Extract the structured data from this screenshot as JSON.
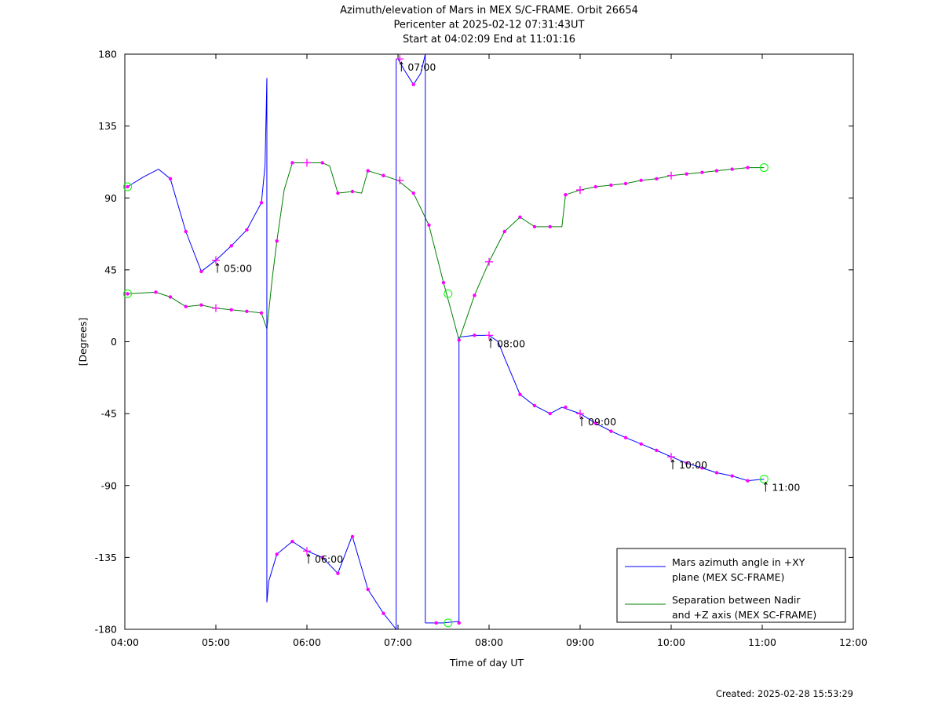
{
  "chart_data": {
    "type": "line",
    "title": [
      "Azimuth/elevation of Mars in MEX S/C-FRAME.  Orbit 26654",
      "Pericenter at 2025-02-12 07:31:43UT",
      "Start at 04:02:09 End at 11:01:16"
    ],
    "xlabel": "Time of day UT",
    "ylabel": "[Degrees]",
    "xlim": [
      4,
      12
    ],
    "ylim": [
      -180,
      180
    ],
    "x_ticks": [
      4,
      5,
      6,
      7,
      8,
      9,
      10,
      11,
      12
    ],
    "x_tick_labels": [
      "04:00",
      "05:00",
      "06:00",
      "07:00",
      "08:00",
      "09:00",
      "10:00",
      "11:00",
      "12:00"
    ],
    "y_ticks": [
      -180,
      -135,
      -90,
      -45,
      0,
      45,
      90,
      135,
      180
    ],
    "y_tick_labels": [
      "-180",
      "-135",
      "-90",
      "-45",
      "0",
      "45",
      "90",
      "135",
      "180"
    ],
    "grid": false,
    "legend_position": "bottom-right",
    "colors": {
      "azimuth": "#0000ff",
      "separation": "#008000",
      "marker": "#ff00ff",
      "endpoint": "#00ff00"
    },
    "series": [
      {
        "name": "Mars azimuth angle in +XY plane (MEX SC-FRAME)",
        "legend_lines": [
          "Mars azimuth angle in +XY",
          "plane (MEX SC-FRAME)"
        ],
        "color": "#0000ff",
        "segments": [
          [
            [
              4.03,
              97
            ],
            [
              4.2,
              103
            ],
            [
              4.37,
              108
            ],
            [
              4.5,
              102
            ],
            [
              4.67,
              69
            ],
            [
              4.84,
              44
            ],
            [
              5.0,
              51
            ],
            [
              5.17,
              60
            ],
            [
              5.34,
              70
            ],
            [
              5.5,
              87
            ],
            [
              5.54,
              110
            ],
            [
              5.56,
              165
            ]
          ],
          [
            [
              5.56,
              -163
            ],
            [
              5.58,
              -150
            ],
            [
              5.67,
              -133
            ],
            [
              5.84,
              -125
            ],
            [
              6.0,
              -131
            ],
            [
              6.17,
              -135
            ],
            [
              6.34,
              -145
            ],
            [
              6.5,
              -121
            ],
            [
              6.5,
              -122
            ],
            [
              6.67,
              -155
            ],
            [
              6.84,
              -170
            ],
            [
              6.98,
              -180
            ]
          ],
          [
            [
              7.0,
              177
            ],
            [
              7.07,
              170
            ],
            [
              7.17,
              161
            ],
            [
              7.25,
              168
            ],
            [
              7.3,
              180
            ]
          ],
          [
            [
              7.3,
              -176
            ],
            [
              7.5,
              -176
            ],
            [
              7.67,
              -175
            ]
          ],
          [
            [
              7.69,
              3
            ],
            [
              7.84,
              4
            ],
            [
              8.0,
              4
            ],
            [
              8.1,
              0
            ],
            [
              8.17,
              -10
            ],
            [
              8.34,
              -33
            ],
            [
              8.5,
              -40
            ],
            [
              8.67,
              -45
            ],
            [
              8.8,
              -41
            ],
            [
              9.0,
              -45
            ],
            [
              9.17,
              -51
            ],
            [
              9.34,
              -56
            ],
            [
              9.5,
              -60
            ],
            [
              9.67,
              -64
            ],
            [
              9.84,
              -68
            ],
            [
              10.0,
              -72
            ],
            [
              10.17,
              -76
            ],
            [
              10.34,
              -79
            ],
            [
              10.5,
              -82
            ],
            [
              10.67,
              -84
            ],
            [
              10.84,
              -87
            ],
            [
              11.02,
              -86
            ]
          ]
        ]
      },
      {
        "name": "Separation between Nadir and +Z axis (MEX SC-FRAME)",
        "legend_lines": [
          "Separation between Nadir",
          "and +Z axis (MEX SC-FRAME)"
        ],
        "color": "#008000",
        "segments": [
          [
            [
              4.03,
              30
            ],
            [
              4.34,
              31
            ],
            [
              4.5,
              28
            ],
            [
              4.67,
              22
            ],
            [
              4.84,
              23
            ],
            [
              5.0,
              21
            ],
            [
              5.17,
              20
            ],
            [
              5.34,
              19
            ],
            [
              5.5,
              18
            ],
            [
              5.56,
              8
            ],
            [
              5.62,
              40
            ],
            [
              5.67,
              63
            ],
            [
              5.75,
              95
            ],
            [
              5.84,
              112
            ],
            [
              6.0,
              112
            ],
            [
              6.17,
              112
            ],
            [
              6.25,
              110
            ],
            [
              6.34,
              93
            ],
            [
              6.5,
              94
            ],
            [
              6.6,
              93
            ],
            [
              6.67,
              107
            ],
            [
              6.84,
              104
            ],
            [
              7.0,
              101
            ],
            [
              7.17,
              93
            ],
            [
              7.34,
              73
            ],
            [
              7.5,
              37
            ],
            [
              7.6,
              16
            ],
            [
              7.67,
              1
            ],
            [
              7.84,
              29
            ],
            [
              8.0,
              50
            ],
            [
              8.17,
              69
            ],
            [
              8.34,
              78
            ],
            [
              8.5,
              72
            ],
            [
              8.67,
              72
            ],
            [
              8.8,
              72
            ],
            [
              8.84,
              92
            ],
            [
              9.0,
              95
            ],
            [
              9.17,
              97
            ],
            [
              9.34,
              98
            ],
            [
              9.5,
              99
            ],
            [
              9.67,
              101
            ],
            [
              9.84,
              102
            ],
            [
              10.0,
              104
            ],
            [
              10.17,
              105
            ],
            [
              10.34,
              106
            ],
            [
              10.5,
              107
            ],
            [
              10.67,
              108
            ],
            [
              10.84,
              109
            ],
            [
              11.02,
              109
            ]
          ]
        ]
      }
    ],
    "markers": {
      "azimuth": [
        [
          4.03,
          97
        ],
        [
          4.5,
          102
        ],
        [
          4.67,
          69
        ],
        [
          4.84,
          44
        ],
        [
          5.17,
          60
        ],
        [
          5.34,
          70
        ],
        [
          5.5,
          87
        ],
        [
          5.67,
          -133
        ],
        [
          5.84,
          -125
        ],
        [
          6.17,
          -135
        ],
        [
          6.34,
          -145
        ],
        [
          6.5,
          -122
        ],
        [
          6.67,
          -155
        ],
        [
          6.84,
          -170
        ],
        [
          7.17,
          161
        ],
        [
          7.84,
          4
        ],
        [
          8.34,
          -33
        ],
        [
          8.5,
          -40
        ],
        [
          8.67,
          -45
        ],
        [
          8.84,
          -41
        ],
        [
          9.17,
          -51
        ],
        [
          9.34,
          -56
        ],
        [
          9.5,
          -60
        ],
        [
          9.67,
          -64
        ],
        [
          9.84,
          -68
        ],
        [
          10.17,
          -76
        ],
        [
          10.34,
          -79
        ],
        [
          10.5,
          -82
        ],
        [
          10.67,
          -84
        ],
        [
          10.84,
          -87
        ],
        [
          7.42,
          -176
        ],
        [
          7.67,
          -176
        ]
      ],
      "separation": [
        [
          4.03,
          30
        ],
        [
          4.34,
          31
        ],
        [
          4.5,
          28
        ],
        [
          4.67,
          22
        ],
        [
          4.84,
          23
        ],
        [
          5.17,
          20
        ],
        [
          5.34,
          19
        ],
        [
          5.5,
          18
        ],
        [
          5.67,
          63
        ],
        [
          5.84,
          112
        ],
        [
          6.17,
          112
        ],
        [
          6.34,
          93
        ],
        [
          6.5,
          94
        ],
        [
          6.67,
          107
        ],
        [
          6.84,
          104
        ],
        [
          7.17,
          93
        ],
        [
          7.34,
          73
        ],
        [
          7.5,
          37
        ],
        [
          7.67,
          1
        ],
        [
          7.84,
          29
        ],
        [
          8.17,
          69
        ],
        [
          8.34,
          78
        ],
        [
          8.5,
          72
        ],
        [
          8.67,
          72
        ],
        [
          8.84,
          92
        ],
        [
          9.17,
          97
        ],
        [
          9.34,
          98
        ],
        [
          9.5,
          99
        ],
        [
          9.67,
          101
        ],
        [
          9.84,
          102
        ],
        [
          10.17,
          105
        ],
        [
          10.34,
          106
        ],
        [
          10.5,
          107
        ],
        [
          10.67,
          108
        ],
        [
          10.84,
          109
        ]
      ],
      "hour_crosses": [
        [
          5.0,
          51
        ],
        [
          5.0,
          21
        ],
        [
          6.0,
          -131
        ],
        [
          6.0,
          112
        ],
        [
          7.02,
          177
        ],
        [
          7.02,
          101
        ],
        [
          8.0,
          4
        ],
        [
          8.0,
          50
        ],
        [
          9.0,
          -45
        ],
        [
          9.0,
          95
        ],
        [
          10.0,
          -72
        ],
        [
          10.0,
          104
        ]
      ],
      "endpoints": [
        [
          4.03,
          97
        ],
        [
          4.03,
          30
        ],
        [
          7.55,
          30
        ],
        [
          7.55,
          -176
        ],
        [
          11.02,
          -86
        ],
        [
          11.02,
          109
        ]
      ]
    },
    "hour_annotations": [
      {
        "label": "05:00",
        "x": 5.0,
        "y": 51
      },
      {
        "label": "06:00",
        "x": 6.0,
        "y": -131
      },
      {
        "label": "07:00",
        "x": 7.02,
        "y": 177
      },
      {
        "label": "08:00",
        "x": 8.0,
        "y": 4
      },
      {
        "label": "09:00",
        "x": 9.0,
        "y": -45
      },
      {
        "label": "10:00",
        "x": 10.0,
        "y": -72
      },
      {
        "label": "11:00",
        "x": 11.02,
        "y": -86
      }
    ]
  },
  "footer": {
    "created": "Created: 2025-02-28 15:53:29"
  }
}
